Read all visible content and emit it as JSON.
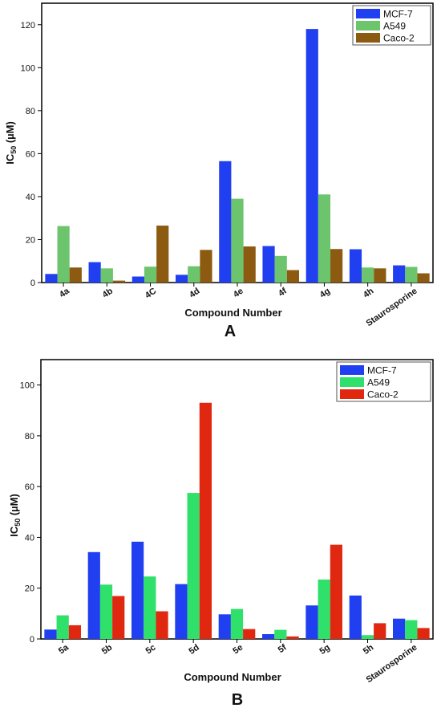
{
  "chart_data": [
    {
      "type": "bar",
      "panel_label": "A",
      "xlabel": "Compound Number",
      "ylabel": "IC",
      "ylabel_sub": "50",
      "ylabel_unit": " (µM)",
      "ylim": [
        0,
        130
      ],
      "yticks": [
        0,
        20,
        40,
        60,
        80,
        100,
        120
      ],
      "legend_position": "top-right",
      "categories": [
        "4a",
        "4b",
        "4C",
        "4d",
        "4e",
        "4f",
        "4g",
        "4h",
        "Staurosporine"
      ],
      "series": [
        {
          "name": "MCF-7",
          "color": "#1f3ff0",
          "values": [
            4,
            9.5,
            2.8,
            3.6,
            56.5,
            17,
            118,
            15.5,
            8
          ]
        },
        {
          "name": "A549",
          "color": "#6cc46c",
          "values": [
            26.3,
            6.6,
            7.4,
            7.6,
            39,
            12.4,
            41,
            7,
            7.3
          ]
        },
        {
          "name": "Caco-2",
          "color": "#8c5a10",
          "values": [
            7,
            0.9,
            26.5,
            15.2,
            16.8,
            5.8,
            15.6,
            6.6,
            4.3
          ]
        }
      ]
    },
    {
      "type": "bar",
      "panel_label": "B",
      "xlabel": "Compound Number",
      "ylabel": "IC",
      "ylabel_sub": "50",
      "ylabel_unit": " (µM)",
      "ylim": [
        0,
        110
      ],
      "yticks": [
        0,
        20,
        40,
        60,
        80,
        100
      ],
      "legend_position": "top-right",
      "categories": [
        "5a",
        "5b",
        "5c",
        "5d",
        "5e",
        "5f",
        "5g",
        "5h",
        "Staurosporine"
      ],
      "series": [
        {
          "name": "MCF-7",
          "color": "#1f3ff0",
          "values": [
            3.7,
            34.2,
            38.3,
            21.6,
            9.7,
            1.9,
            13.2,
            17.1,
            8
          ]
        },
        {
          "name": "A549",
          "color": "#2fe06a",
          "values": [
            9.3,
            21.4,
            24.6,
            57.5,
            11.8,
            3.6,
            23.4,
            1.5,
            7.4
          ]
        },
        {
          "name": "Caco-2",
          "color": "#e02810",
          "values": [
            5.4,
            16.9,
            10.9,
            93,
            3.9,
            1,
            37.1,
            6.2,
            4.3
          ]
        }
      ]
    }
  ]
}
